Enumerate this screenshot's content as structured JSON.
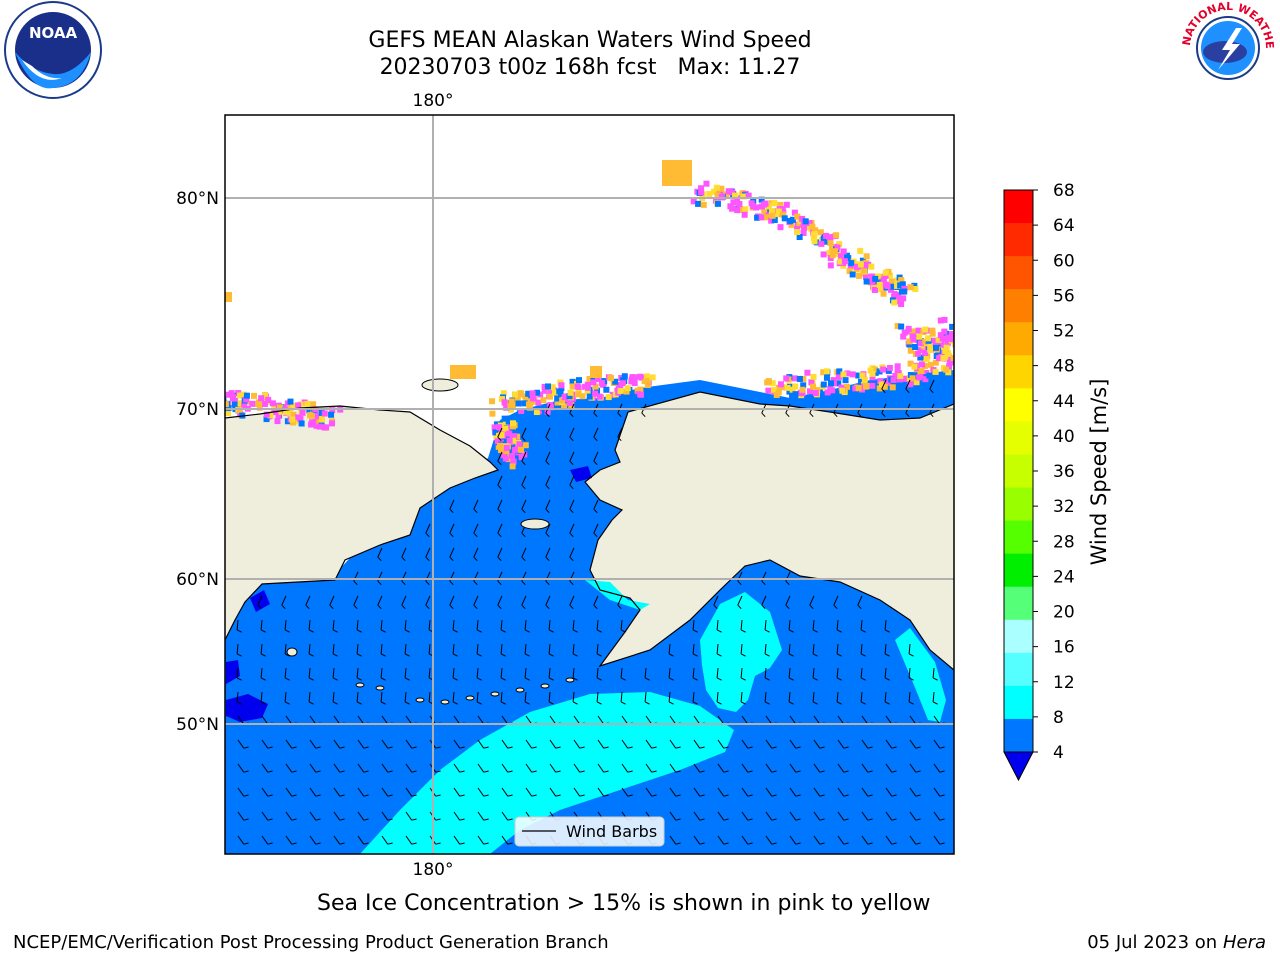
{
  "title": {
    "line1": "GEFS MEAN Alaskan Waters Wind Speed",
    "line2": "20230703 t00z 168h fcst",
    "max_label": "Max: 11.27"
  },
  "map": {
    "lon_label_top": "180°",
    "lon_label_bottom": "180°",
    "lat_labels": [
      "80°N",
      "70°N",
      "60°N",
      "50°N"
    ],
    "legend_label": "Wind Barbs",
    "colors": {
      "ocean_wind": "#0077ff",
      "fast_wind": "#00ffff",
      "mid_wind": "#55ffff",
      "land": "#efeedd",
      "ice_pink": "#ff55ff",
      "ice_orange": "#ffbb33",
      "ice_yellow": "#ffdd33",
      "calm": "#0000ee",
      "gridline": "#b0b0b0"
    }
  },
  "colorbar": {
    "label": "Wind Speed [m/s]",
    "ticks": [
      "68",
      "64",
      "60",
      "56",
      "52",
      "48",
      "44",
      "40",
      "36",
      "32",
      "28",
      "24",
      "20",
      "16",
      "12",
      "8",
      "4"
    ],
    "colors": [
      "#ff0000",
      "#ff2a00",
      "#ff5500",
      "#ff8000",
      "#ffaa00",
      "#ffd500",
      "#ffff00",
      "#e6ff00",
      "#c8ff00",
      "#99ff00",
      "#55ff00",
      "#00ee00",
      "#55ff77",
      "#aaffff",
      "#55ffff",
      "#00ffff",
      "#0077ff"
    ],
    "under_color": "#0000ee"
  },
  "note": "Sea Ice Concentration > 15% is shown in pink to yellow",
  "footer": {
    "left": "NCEP/EMC/Verification Post Processing Product Generation Branch",
    "right_prefix": "05 Jul 2023 on ",
    "right_host": "Hera"
  },
  "logos": {
    "noaa_text": "NOAA",
    "nws_text": "NATIONAL WEATHER SERVICE"
  }
}
